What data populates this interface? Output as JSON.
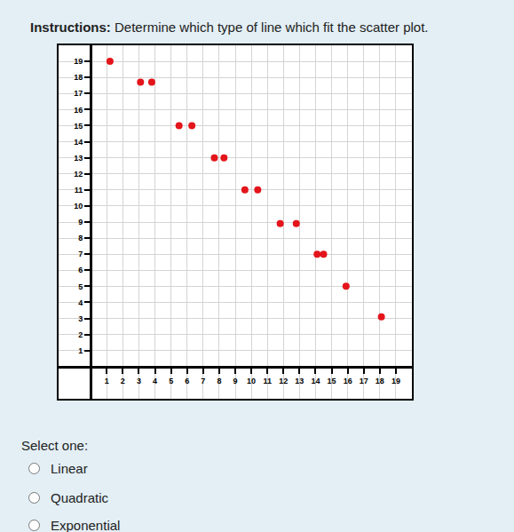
{
  "instructions_label": "Instructions:",
  "instructions": "Determine which type of line which fit the scatter plot.",
  "prompt": "Select one:",
  "options": [
    "Linear",
    "Quadratic",
    "Exponential"
  ],
  "chart_data": {
    "type": "scatter",
    "x": [
      1.2,
      3.1,
      3.8,
      5.5,
      6.3,
      7.7,
      8.3,
      9.6,
      10.4,
      11.8,
      12.8,
      14.1,
      14.5,
      15.9,
      18.1
    ],
    "values": [
      19,
      17.7,
      17.7,
      15,
      15,
      13,
      13,
      11,
      11,
      8.9,
      8.9,
      7,
      7,
      5,
      3.1
    ],
    "color": "#e3151b",
    "marker": "circle",
    "xlim": [
      -2,
      20
    ],
    "ylim": [
      -2,
      20
    ],
    "xticks": [
      1,
      2,
      3,
      4,
      5,
      6,
      7,
      8,
      9,
      10,
      11,
      12,
      13,
      14,
      15,
      16,
      17,
      18,
      19
    ],
    "yticks": [
      1,
      2,
      3,
      4,
      5,
      6,
      7,
      8,
      9,
      10,
      11,
      12,
      13,
      14,
      15,
      16,
      17,
      18,
      19
    ],
    "grid": true
  }
}
